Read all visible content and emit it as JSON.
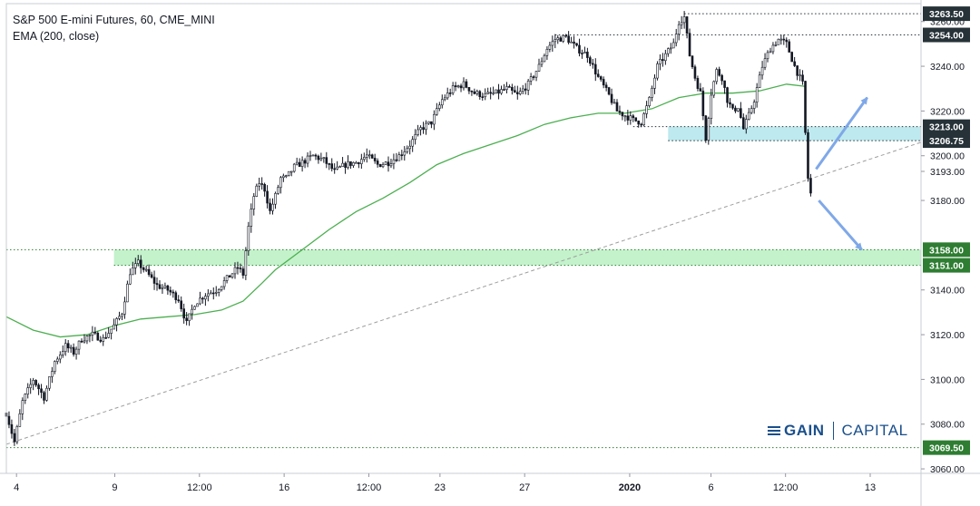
{
  "header": {
    "title": "S&P 500 E-mini Futures, 60, CME_MINI",
    "indicator": "EMA (200, close)"
  },
  "logo": {
    "brand": "GAIN",
    "product": "CAPITAL"
  },
  "colors": {
    "candle": "#131722",
    "ema": "#4caf50",
    "trendline": "#9e9e9e",
    "zone_green": "#b9f0c2",
    "zone_blue": "#b2e5ec",
    "level_line_green": "#2e7d32",
    "level_line_dark": "#263238",
    "price_label_bg": "#263238",
    "green_label_bg": "#2e7d32",
    "arrow": "#7fa8e8"
  },
  "chart_data": {
    "type": "candlestick",
    "title": "S&P 500 E-mini Futures, 60, CME_MINI",
    "indicator": "EMA (200, close)",
    "x_ticks": [
      "4",
      "9",
      "12:00",
      "16",
      "12:00",
      "23",
      "27",
      "2020",
      "6",
      "12:00",
      "13"
    ],
    "y_ticks": [
      3060,
      3080,
      3100,
      3120,
      3140,
      3180,
      3193,
      3200,
      3220,
      3240,
      3260
    ],
    "ylim": [
      3058,
      3268
    ],
    "price_levels": [
      {
        "label": "3263.50",
        "value": 3263.5,
        "style": "dark"
      },
      {
        "label": "3254.00",
        "value": 3254.0,
        "style": "dark"
      },
      {
        "label": "3213.00",
        "value": 3213.0,
        "style": "dark"
      },
      {
        "label": "3206.75",
        "value": 3206.75,
        "style": "dark"
      },
      {
        "label": "3158.00",
        "value": 3158.0,
        "style": "green"
      },
      {
        "label": "3151.00",
        "value": 3151.0,
        "style": "green"
      },
      {
        "label": "3069.50",
        "value": 3069.5,
        "style": "green"
      }
    ],
    "zones": [
      {
        "name": "support",
        "from": 3151.0,
        "to": 3158.0,
        "color": "green"
      },
      {
        "name": "resistance",
        "from": 3206.75,
        "to": 3213.0,
        "color": "blue"
      }
    ],
    "price_path": [
      [
        0,
        3085
      ],
      [
        3,
        3072
      ],
      [
        6,
        3090
      ],
      [
        10,
        3100
      ],
      [
        14,
        3092
      ],
      [
        18,
        3108
      ],
      [
        22,
        3115
      ],
      [
        25,
        3112
      ],
      [
        28,
        3118
      ],
      [
        32,
        3120
      ],
      [
        36,
        3118
      ],
      [
        40,
        3124
      ],
      [
        43,
        3130
      ],
      [
        46,
        3148
      ],
      [
        49,
        3152
      ],
      [
        52,
        3148
      ],
      [
        56,
        3142
      ],
      [
        60,
        3140
      ],
      [
        64,
        3136
      ],
      [
        67,
        3125
      ],
      [
        70,
        3134
      ],
      [
        74,
        3138
      ],
      [
        78,
        3140
      ],
      [
        82,
        3145
      ],
      [
        86,
        3150
      ],
      [
        88,
        3147
      ],
      [
        90,
        3168
      ],
      [
        92,
        3182
      ],
      [
        94,
        3188
      ],
      [
        96,
        3185
      ],
      [
        98,
        3175
      ],
      [
        100,
        3182
      ],
      [
        102,
        3190
      ],
      [
        104,
        3190
      ],
      [
        107,
        3195
      ],
      [
        110,
        3197
      ],
      [
        114,
        3200
      ],
      [
        118,
        3198
      ],
      [
        122,
        3193
      ],
      [
        126,
        3196
      ],
      [
        130,
        3197
      ],
      [
        134,
        3200
      ],
      [
        138,
        3196
      ],
      [
        142,
        3197
      ],
      [
        146,
        3200
      ],
      [
        150,
        3205
      ],
      [
        154,
        3212
      ],
      [
        158,
        3215
      ],
      [
        162,
        3225
      ],
      [
        166,
        3230
      ],
      [
        170,
        3232
      ],
      [
        174,
        3228
      ],
      [
        178,
        3227
      ],
      [
        182,
        3228
      ],
      [
        186,
        3230
      ],
      [
        190,
        3227
      ],
      [
        194,
        3232
      ],
      [
        198,
        3240
      ],
      [
        201,
        3248
      ],
      [
        204,
        3252
      ],
      [
        208,
        3253
      ],
      [
        212,
        3248
      ],
      [
        216,
        3245
      ],
      [
        220,
        3235
      ],
      [
        224,
        3227
      ],
      [
        227,
        3220
      ],
      [
        230,
        3218
      ],
      [
        233,
        3216
      ],
      [
        236,
        3215
      ],
      [
        239,
        3225
      ],
      [
        242,
        3240
      ],
      [
        245,
        3245
      ],
      [
        248,
        3250
      ],
      [
        250,
        3260
      ],
      [
        252,
        3262
      ],
      [
        254,
        3245
      ],
      [
        256,
        3235
      ],
      [
        258,
        3228
      ],
      [
        260,
        3208
      ],
      [
        262,
        3228
      ],
      [
        264,
        3238
      ],
      [
        266,
        3235
      ],
      [
        268,
        3225
      ],
      [
        270,
        3220
      ],
      [
        272,
        3222
      ],
      [
        274,
        3212
      ],
      [
        276,
        3218
      ],
      [
        278,
        3225
      ],
      [
        281,
        3240
      ],
      [
        284,
        3248
      ],
      [
        287,
        3252
      ],
      [
        290,
        3250
      ],
      [
        293,
        3240
      ],
      [
        296,
        3232
      ],
      [
        297,
        3210
      ],
      [
        298,
        3190
      ],
      [
        299,
        3183
      ]
    ],
    "ema_path": [
      [
        0,
        3128
      ],
      [
        10,
        3122
      ],
      [
        20,
        3119
      ],
      [
        30,
        3120
      ],
      [
        40,
        3124
      ],
      [
        50,
        3127
      ],
      [
        60,
        3128
      ],
      [
        70,
        3129
      ],
      [
        80,
        3131
      ],
      [
        88,
        3135
      ],
      [
        95,
        3143
      ],
      [
        100,
        3149
      ],
      [
        110,
        3158
      ],
      [
        120,
        3167
      ],
      [
        130,
        3175
      ],
      [
        140,
        3181
      ],
      [
        150,
        3188
      ],
      [
        160,
        3196
      ],
      [
        170,
        3201
      ],
      [
        180,
        3205
      ],
      [
        190,
        3209
      ],
      [
        200,
        3214
      ],
      [
        210,
        3217
      ],
      [
        220,
        3219
      ],
      [
        230,
        3219
      ],
      [
        240,
        3221
      ],
      [
        250,
        3226
      ],
      [
        260,
        3228
      ],
      [
        270,
        3228
      ],
      [
        280,
        3229
      ],
      [
        290,
        3232
      ],
      [
        297,
        3231
      ]
    ],
    "trendline": [
      [
        0,
        3071
      ],
      [
        340,
        3206
      ]
    ],
    "arrows": [
      {
        "name": "up-arrow",
        "from": [
          301,
          3194
        ],
        "to": [
          320,
          3226
        ]
      },
      {
        "name": "down-arrow",
        "from": [
          302,
          3180
        ],
        "to": [
          318,
          3158
        ]
      }
    ]
  }
}
